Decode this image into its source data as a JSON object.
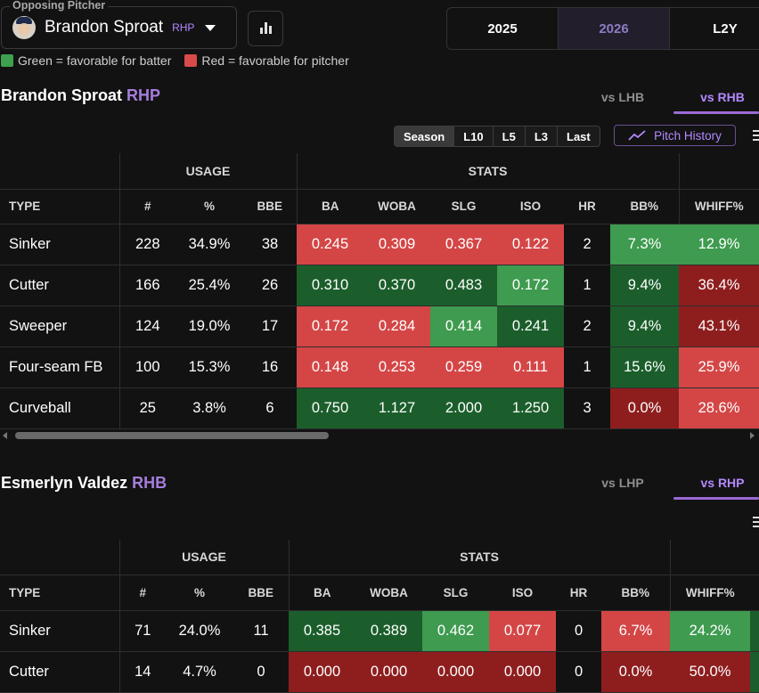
{
  "pitcher_select": {
    "legend": "Opposing Pitcher",
    "name": "Brandon Sproat",
    "hand": "RHP"
  },
  "year_tabs": [
    {
      "label": "2025",
      "active": false
    },
    {
      "label": "2026",
      "active": true
    },
    {
      "label": "L2Y",
      "active": false
    }
  ],
  "legend": {
    "green": "Green = favorable for batter",
    "red": "Red = favorable for pitcher"
  },
  "colors": {
    "red": "#d44646",
    "green": "#3e9b4f",
    "dark_green": "#1b5e2b",
    "dark_red": "#8e1e1e",
    "accent": "#b388ff"
  },
  "pitcher_section": {
    "name": "Brandon Sproat",
    "hand": "RHP",
    "tabs": [
      {
        "label": "vs LHB",
        "active": false
      },
      {
        "label": "vs RHB",
        "active": true
      }
    ],
    "ranges": [
      {
        "label": "Season",
        "active": true
      },
      {
        "label": "L10",
        "active": false
      },
      {
        "label": "L5",
        "active": false
      },
      {
        "label": "L3",
        "active": false
      },
      {
        "label": "Last",
        "active": false
      }
    ],
    "pitch_history": "Pitch History",
    "group_headers": {
      "usage": "USAGE",
      "stats": "STATS"
    },
    "columns": [
      "TYPE",
      "#",
      "%",
      "BBE",
      "BA",
      "WOBA",
      "SLG",
      "ISO",
      "HR",
      "BB%",
      "WHIFF%"
    ],
    "rows": [
      {
        "type": "Sinker",
        "n": "228",
        "pct": "34.9%",
        "bbe": "38",
        "ba": "0.245",
        "woba": "0.309",
        "slg": "0.367",
        "iso": "0.122",
        "hr": "2",
        "bb": "7.3%",
        "whiff": "12.9%"
      },
      {
        "type": "Cutter",
        "n": "166",
        "pct": "25.4%",
        "bbe": "26",
        "ba": "0.310",
        "woba": "0.370",
        "slg": "0.483",
        "iso": "0.172",
        "hr": "1",
        "bb": "9.4%",
        "whiff": "36.4%"
      },
      {
        "type": "Sweeper",
        "n": "124",
        "pct": "19.0%",
        "bbe": "17",
        "ba": "0.172",
        "woba": "0.284",
        "slg": "0.414",
        "iso": "0.241",
        "hr": "2",
        "bb": "9.4%",
        "whiff": "43.1%"
      },
      {
        "type": "Four-seam FB",
        "n": "100",
        "pct": "15.3%",
        "bbe": "16",
        "ba": "0.148",
        "woba": "0.253",
        "slg": "0.259",
        "iso": "0.111",
        "hr": "1",
        "bb": "15.6%",
        "whiff": "25.9%"
      },
      {
        "type": "Curveball",
        "n": "25",
        "pct": "3.8%",
        "bbe": "6",
        "ba": "0.750",
        "woba": "1.127",
        "slg": "2.000",
        "iso": "1.250",
        "hr": "3",
        "bb": "0.0%",
        "whiff": "28.6%"
      }
    ]
  },
  "batter_section": {
    "name": "Esmerlyn Valdez",
    "hand": "RHB",
    "tabs": [
      {
        "label": "vs LHP",
        "active": false
      },
      {
        "label": "vs RHP",
        "active": true
      }
    ],
    "group_headers": {
      "usage": "USAGE",
      "stats": "STATS"
    },
    "columns": [
      "TYPE",
      "#",
      "%",
      "BBE",
      "BA",
      "WOBA",
      "SLG",
      "ISO",
      "HR",
      "BB%",
      "WHIFF%"
    ],
    "rows": [
      {
        "type": "Sinker",
        "n": "71",
        "pct": "24.0%",
        "bbe": "11",
        "ba": "0.385",
        "woba": "0.389",
        "slg": "0.462",
        "iso": "0.077",
        "hr": "0",
        "bb": "6.7%",
        "whiff": "24.2%"
      },
      {
        "type": "Cutter",
        "n": "14",
        "pct": "4.7%",
        "bbe": "0",
        "ba": "0.000",
        "woba": "0.000",
        "slg": "0.000",
        "iso": "0.000",
        "hr": "0",
        "bb": "0.0%",
        "whiff": "50.0%"
      }
    ]
  }
}
